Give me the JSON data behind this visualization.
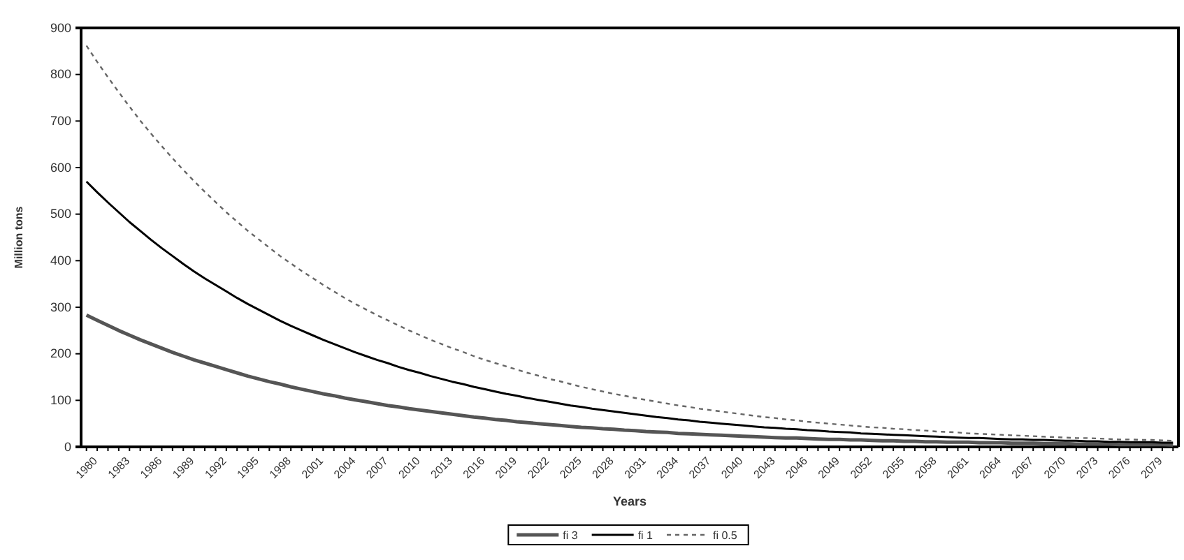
{
  "chart_data": {
    "type": "line",
    "xlabel": "Years",
    "ylabel": "Million tons",
    "categories": [
      "1980",
      null,
      null,
      "1983",
      null,
      null,
      "1986",
      null,
      null,
      "1989",
      null,
      null,
      "1992",
      null,
      null,
      "1995",
      null,
      null,
      "1998",
      null,
      null,
      "2001",
      null,
      null,
      "2004",
      null,
      null,
      "2007",
      null,
      null,
      "2010",
      null,
      null,
      "2013",
      null,
      null,
      "2016",
      null,
      null,
      "2019",
      null,
      null,
      "2022",
      null,
      null,
      "2025",
      null,
      null,
      "2028",
      null,
      null,
      "2031",
      null,
      null,
      "2034",
      null,
      null,
      "2037",
      null,
      null,
      "2040",
      null,
      null,
      "2043",
      null,
      null,
      "2046",
      null,
      null,
      "2049",
      null,
      null,
      "2052",
      null,
      null,
      "2055",
      null,
      null,
      "2058",
      null,
      null,
      "2061",
      null,
      null,
      "2064",
      null,
      null,
      "2067",
      null,
      null,
      "2070",
      null,
      null,
      "2073",
      null,
      null,
      "2076",
      null,
      null,
      "2079",
      null,
      null
    ],
    "series": [
      {
        "name": "fi 3",
        "color": "#555555",
        "line_style": "solid",
        "values": [
          283,
          272,
          261,
          250,
          240,
          230,
          221,
          212,
          203,
          195,
          187,
          180,
          173,
          166,
          159,
          152,
          146,
          140,
          135,
          129,
          124,
          119,
          114,
          110,
          105,
          101,
          97,
          93,
          89,
          86,
          82,
          79,
          76,
          73,
          70,
          67,
          64,
          62,
          59,
          57,
          54,
          52,
          50,
          48,
          46,
          44,
          42,
          41,
          39,
          38,
          36,
          35,
          33,
          32,
          31,
          29,
          28,
          27,
          26,
          25,
          24,
          23,
          22,
          21,
          20,
          19,
          19,
          18,
          17,
          16,
          16,
          15,
          15,
          14,
          13,
          13,
          12,
          12,
          11,
          11,
          10,
          10,
          10,
          9,
          9,
          9,
          8,
          8,
          8,
          7,
          7,
          7,
          6,
          6,
          6,
          6,
          5,
          5,
          5,
          5,
          5,
          4
        ]
      },
      {
        "name": "fi 1",
        "color": "#000000",
        "line_style": "solid",
        "values": [
          570,
          547,
          525,
          504,
          483,
          464,
          445,
          427,
          410,
          393,
          377,
          362,
          348,
          334,
          320,
          307,
          295,
          283,
          271,
          260,
          250,
          240,
          230,
          221,
          212,
          203,
          195,
          187,
          180,
          172,
          165,
          159,
          152,
          146,
          140,
          135,
          129,
          124,
          119,
          114,
          110,
          105,
          101,
          97,
          93,
          89,
          86,
          82,
          79,
          76,
          73,
          70,
          67,
          64,
          62,
          59,
          57,
          54,
          52,
          50,
          48,
          46,
          44,
          42,
          41,
          39,
          38,
          36,
          35,
          33,
          32,
          31,
          29,
          28,
          27,
          26,
          25,
          24,
          23,
          22,
          21,
          20,
          19,
          19,
          18,
          17,
          16,
          16,
          15,
          15,
          14,
          13,
          13,
          12,
          12,
          11,
          11,
          10,
          10,
          10,
          9,
          9
        ]
      },
      {
        "name": "fi 0.5",
        "color": "#666666",
        "line_style": "dashed",
        "values": [
          862,
          827,
          794,
          762,
          731,
          701,
          673,
          646,
          620,
          595,
          571,
          548,
          526,
          504,
          484,
          464,
          446,
          428,
          410,
          394,
          378,
          363,
          348,
          334,
          320,
          307,
          295,
          283,
          272,
          261,
          250,
          240,
          230,
          221,
          212,
          204,
          195,
          187,
          180,
          173,
          166,
          159,
          153,
          146,
          141,
          135,
          129,
          124,
          119,
          114,
          110,
          105,
          101,
          97,
          93,
          89,
          86,
          82,
          79,
          76,
          73,
          70,
          67,
          64,
          62,
          59,
          57,
          54,
          52,
          50,
          48,
          46,
          44,
          42,
          41,
          39,
          38,
          36,
          35,
          33,
          32,
          31,
          29,
          28,
          27,
          26,
          25,
          24,
          23,
          22,
          21,
          20,
          19,
          19,
          18,
          17,
          16,
          16,
          15,
          15,
          14,
          13
        ]
      }
    ],
    "ylim": [
      0,
      900
    ],
    "yticks": [
      0,
      100,
      200,
      300,
      400,
      500,
      600,
      700,
      800,
      900
    ],
    "grid": false,
    "legend": "bottom",
    "marker": "none"
  }
}
